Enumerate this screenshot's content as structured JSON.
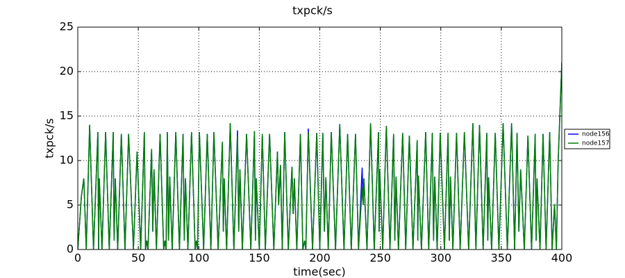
{
  "chart_data": {
    "type": "line",
    "title": "txpck/s",
    "xlabel": "time(sec)",
    "ylabel": "txpck/s",
    "xlim": [
      0,
      400
    ],
    "ylim": [
      0,
      25
    ],
    "xticks": [
      0,
      50,
      100,
      150,
      200,
      250,
      300,
      350,
      400
    ],
    "yticks": [
      0,
      5,
      10,
      15,
      20,
      25
    ],
    "grid": true,
    "legend": "right",
    "x": [
      0,
      3,
      5,
      7,
      9.8,
      13,
      16.6,
      17.2,
      17.8,
      20,
      23,
      26,
      29.3,
      30,
      31,
      33,
      36,
      39,
      42,
      46,
      49,
      52,
      55,
      56,
      57,
      58,
      61,
      62,
      63,
      65,
      68,
      71,
      72,
      73,
      74,
      75,
      76,
      78,
      81,
      84,
      87,
      88,
      89,
      91,
      94,
      97,
      98,
      99,
      100.5,
      104,
      107,
      110,
      112.5,
      116,
      119.5,
      120.3,
      121,
      123,
      126,
      129,
      132,
      133,
      134,
      136,
      139.5,
      143,
      146,
      146.8,
      147.5,
      150,
      152.5,
      155,
      158.5,
      162,
      165,
      166,
      167.5,
      169,
      171,
      174,
      177,
      178,
      179,
      181,
      184,
      186,
      187.5,
      188.5,
      190.5,
      194,
      197.5,
      200,
      202.5,
      203.8,
      205,
      207,
      209.5,
      213,
      216.5,
      220,
      223,
      226,
      229.5,
      232,
      235,
      235.8,
      236.5,
      239,
      242,
      245,
      248.5,
      249,
      249.5,
      252,
      255,
      258,
      261,
      262,
      263,
      265,
      268.5,
      271,
      274,
      277,
      280.5,
      281,
      281.5,
      284,
      287.5,
      290,
      293,
      294,
      295,
      297,
      299.5,
      303,
      306,
      307,
      308,
      310,
      313,
      316,
      319.5,
      323,
      326.5,
      329,
      332,
      335,
      338,
      338.8,
      339.5,
      342,
      345,
      348,
      351.5,
      355,
      358.5,
      361,
      363,
      364.5,
      366,
      369,
      372,
      375,
      378,
      378.8,
      379.5,
      382,
      384.5,
      387,
      390,
      392,
      394,
      395.5,
      397,
      400
    ],
    "series": [
      {
        "name": "node156",
        "color": "#0000ff",
        "values": [
          0,
          6,
          8,
          0,
          14,
          0,
          13.2,
          0,
          8,
          0,
          13.2,
          0,
          13.2,
          1,
          8,
          0,
          13,
          0,
          13,
          0,
          11,
          0,
          13.2,
          0,
          1,
          0,
          11.3,
          2,
          9,
          0,
          13,
          0,
          1,
          0,
          13.2,
          1,
          8.2,
          0,
          13.2,
          0,
          13,
          1,
          8,
          0,
          13.2,
          0,
          1,
          0,
          13.2,
          0,
          13,
          0,
          13.2,
          0,
          12.1,
          2,
          8,
          0,
          14.2,
          0,
          13.4,
          2,
          9,
          0,
          13,
          0,
          13.3,
          1,
          8,
          0,
          13,
          0,
          13,
          0,
          11,
          5,
          9.5,
          0,
          13.2,
          0,
          9.3,
          4,
          8,
          0,
          13,
          0,
          1,
          0,
          13.6,
          0,
          13.1,
          0,
          13.1,
          2,
          8.1,
          0,
          13.2,
          0,
          14.1,
          0,
          13,
          0,
          13,
          0,
          9.2,
          5,
          8,
          0,
          14.2,
          0,
          13.2,
          2,
          9,
          0,
          13.9,
          0,
          13,
          1,
          8.2,
          0,
          13.1,
          0,
          12.8,
          0,
          12.3,
          1,
          8.3,
          0,
          13.2,
          0,
          13.1,
          1,
          8.2,
          0,
          13.1,
          0,
          13.1,
          1,
          8.2,
          0,
          13.1,
          0,
          13.2,
          0,
          14.2,
          0,
          14,
          0,
          13.1,
          1,
          8.1,
          0,
          13.1,
          0,
          14.2,
          0,
          14.2,
          0,
          13.1,
          2,
          9,
          0,
          12.8,
          0,
          13,
          1,
          8,
          0,
          13,
          0,
          13.2,
          0,
          5.1,
          0,
          10,
          21
        ]
      },
      {
        "name": "node157",
        "color": "#008000",
        "values": [
          0,
          6,
          8,
          0,
          14,
          0,
          13.2,
          0,
          8,
          0,
          13.2,
          0,
          13.2,
          1,
          8,
          0,
          13,
          0,
          13,
          0,
          11,
          0,
          13.2,
          0,
          1,
          0,
          11.3,
          2,
          9,
          0,
          13,
          0,
          1,
          0,
          13.2,
          1,
          8.2,
          0,
          13.2,
          0,
          13,
          1,
          8,
          0,
          13.2,
          0,
          1,
          0,
          13.2,
          0,
          13,
          0,
          13.2,
          0,
          12.1,
          2,
          8,
          0,
          14.2,
          0,
          12.8,
          2,
          9,
          0,
          13,
          0,
          13.3,
          1,
          8,
          0,
          13,
          0,
          13,
          0,
          11,
          5,
          9.5,
          0,
          13.2,
          0,
          9.3,
          4,
          8,
          0,
          13,
          0,
          1,
          0,
          13.2,
          0,
          13.1,
          0,
          13.1,
          2,
          8.1,
          0,
          13.2,
          0,
          14,
          0,
          13,
          0,
          13,
          0,
          7,
          5,
          8,
          0,
          14.2,
          0,
          13.2,
          2,
          9,
          0,
          13.9,
          0,
          13,
          1,
          8.2,
          0,
          13.1,
          0,
          12.8,
          0,
          12.3,
          1,
          8.3,
          0,
          13.2,
          0,
          13.1,
          1,
          8.2,
          0,
          13.1,
          0,
          13.1,
          1,
          8.2,
          0,
          13.1,
          0,
          13.2,
          0,
          14.2,
          0,
          14,
          0,
          13.1,
          1,
          8.1,
          0,
          13.1,
          0,
          14.2,
          0,
          14.2,
          0,
          13.1,
          2,
          9,
          0,
          12.8,
          0,
          13,
          1,
          8,
          0,
          13,
          0,
          13.2,
          0,
          5.1,
          0,
          10,
          21
        ]
      }
    ]
  }
}
